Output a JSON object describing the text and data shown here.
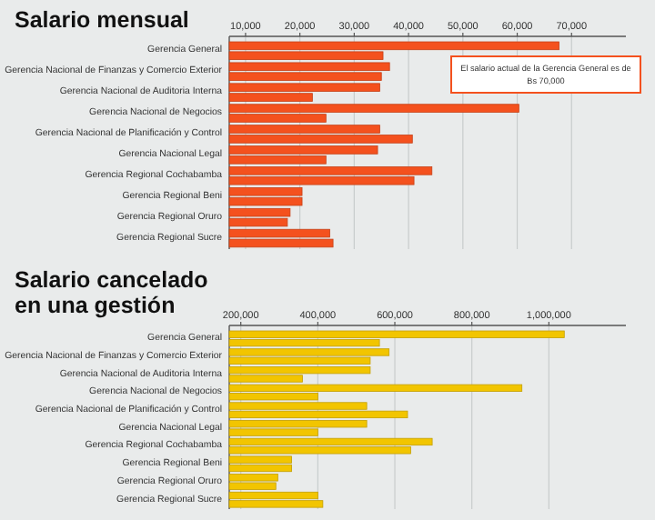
{
  "chart_data": [
    {
      "type": "bar",
      "orientation": "horizontal",
      "title": "Salario mensual",
      "categories": [
        "Gerencia General",
        "Gerencia Nacional de Finanzas y Comercio Exterior",
        "Gerencia Nacional de Auditoria Interna",
        "Gerencia Nacional de Negocios",
        "Gerencia Nacional de Planificación y Control",
        "Gerencia Nacional Legal",
        "Gerencia Regional Cochabamba",
        "Gerencia Regional Beni",
        "Gerencia Regional Oruro",
        "Gerencia Regional Sucre"
      ],
      "series": [
        {
          "color": "#f4511e",
          "values": [
            67700,
            36500,
            34700,
            60300,
            34700,
            34300,
            44300,
            20400,
            18200,
            25500
          ]
        },
        {
          "color": "#f4511e",
          "values": [
            35300,
            35000,
            22300,
            24800,
            40700,
            24800,
            41000,
            20400,
            17700,
            26100
          ]
        }
      ],
      "xlim": [
        7000,
        80000
      ],
      "xticks": [
        {
          "value": 10000,
          "label": "10,000"
        },
        {
          "value": 20000,
          "label": "20,000"
        },
        {
          "value": 30000,
          "label": "30,000"
        },
        {
          "value": 40000,
          "label": "40,000"
        },
        {
          "value": 50000,
          "label": "50,000"
        },
        {
          "value": 60000,
          "label": "60,000"
        },
        {
          "value": 70000,
          "label": "70,000"
        }
      ],
      "grid": "x",
      "annotations": [
        "El salario actual de la Gerencia General es de Bs 70,000"
      ]
    },
    {
      "type": "bar",
      "orientation": "horizontal",
      "title": "Salario cancelado en una gestión",
      "categories": [
        "Gerencia General",
        "Gerencia Nacional de Finanzas y Comercio Exterior",
        "Gerencia Nacional de Auditoria Interna",
        "Gerencia Nacional de Negocios",
        "Gerencia Nacional de Planificación y Control",
        "Gerencia Nacional Legal",
        "Gerencia Regional Cochabamba",
        "Gerencia Regional Beni",
        "Gerencia Regional Oruro",
        "Gerencia Regional Sucre"
      ],
      "series": [
        {
          "color": "#f2c500",
          "values": [
            1040000,
            585000,
            536000,
            930000,
            527000,
            527000,
            697000,
            332000,
            296000,
            400000
          ]
        },
        {
          "color": "#f2c500",
          "values": [
            560000,
            536000,
            360000,
            400000,
            633000,
            400000,
            641000,
            332000,
            291000,
            413000
          ]
        }
      ],
      "xlim": [
        170000,
        1200000
      ],
      "xticks": [
        {
          "value": 200000,
          "label": "200,000"
        },
        {
          "value": 400000,
          "label": "400,000"
        },
        {
          "value": 600000,
          "label": "600,000"
        },
        {
          "value": 800000,
          "label": "800,000"
        },
        {
          "value": 1000000,
          "label": "1,000,000"
        }
      ],
      "grid": "x"
    }
  ]
}
